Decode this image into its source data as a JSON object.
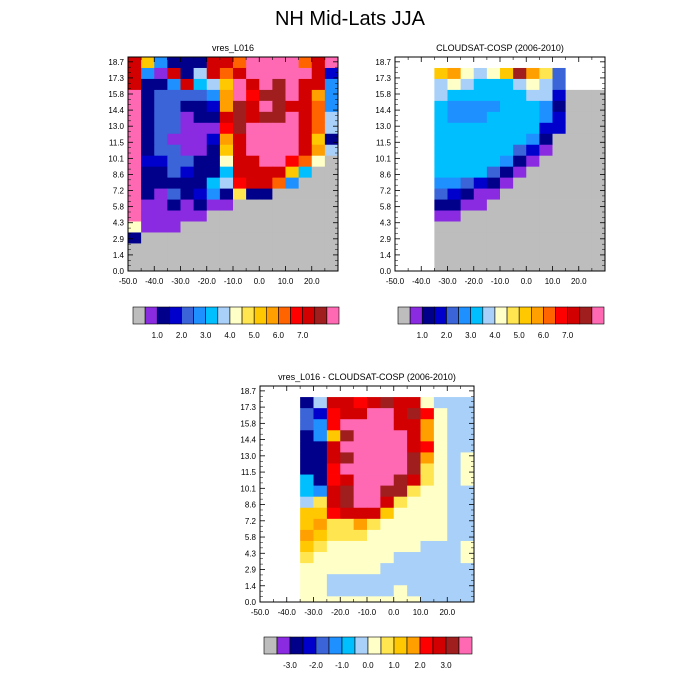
{
  "figure": {
    "title": "NH Mid-Lats JJA"
  },
  "colors": {
    "missing": "#bdbdbd",
    "full_palette": [
      "#bdbdbd",
      "#8a2be2",
      "#00008b",
      "#0000cd",
      "#3a64d8",
      "#1e90ff",
      "#00bfff",
      "#a8d0f8",
      "#ffffc8",
      "#ffe650",
      "#ffc800",
      "#ffa000",
      "#ff6400",
      "#ff0000",
      "#d20000",
      "#a01e1e",
      "#ff69b4"
    ],
    "diff_palette": [
      "#bdbdbd",
      "#8a2be2",
      "#00008b",
      "#0000cd",
      "#3a64d8",
      "#1e90ff",
      "#00bfff",
      "#a8d0f8",
      "#ffffc8",
      "#ffe650",
      "#ffc800",
      "#ffa000",
      "#ff0000",
      "#d20000",
      "#a01e1e",
      "#ff69b4"
    ]
  },
  "chart_data": [
    {
      "type": "heatmap",
      "title": "vres_L016",
      "xlabel": "",
      "ylabel": "",
      "x_ticks": [
        "-50.0",
        "-40.0",
        "-30.0",
        "-20.0",
        "-10.0",
        "0.0",
        "10.0",
        "20.0"
      ],
      "y_ticks": [
        "0.0",
        "1.4",
        "2.9",
        "4.3",
        "5.8",
        "7.2",
        "8.6",
        "10.1",
        "11.5",
        "13.0",
        "14.4",
        "15.8",
        "17.3",
        "18.7"
      ],
      "colorbar_labels": [
        "1.0",
        "2.0",
        "3.0",
        "4.0",
        "5.0",
        "6.0",
        "7.0"
      ],
      "x_start": -50,
      "x_step": 5,
      "row_bottom_height_km": 0.2,
      "missing_value": 0,
      "values": [
        [
          14,
          10,
          5,
          2,
          2,
          2,
          14,
          14,
          12,
          16,
          16,
          16,
          16,
          12,
          14,
          16
        ],
        [
          14,
          5,
          1,
          14,
          2,
          7,
          14,
          12,
          14,
          16,
          16,
          16,
          16,
          16,
          14,
          3
        ],
        [
          14,
          2,
          2,
          5,
          14,
          6,
          7,
          10,
          16,
          14,
          16,
          15,
          16,
          14,
          14,
          5
        ],
        [
          16,
          2,
          4,
          4,
          4,
          4,
          5,
          11,
          16,
          13,
          15,
          15,
          16,
          14,
          11,
          5
        ],
        [
          16,
          2,
          4,
          4,
          2,
          2,
          3,
          11,
          15,
          14,
          16,
          15,
          14,
          14,
          12,
          5
        ],
        [
          16,
          2,
          4,
          4,
          1,
          2,
          2,
          14,
          15,
          14,
          15,
          15,
          16,
          14,
          12,
          7
        ],
        [
          16,
          2,
          4,
          4,
          1,
          1,
          1,
          13,
          15,
          16,
          16,
          16,
          16,
          14,
          12,
          7
        ],
        [
          16,
          2,
          4,
          1,
          1,
          1,
          3,
          11,
          14,
          16,
          16,
          16,
          16,
          14,
          10,
          2
        ],
        [
          16,
          2,
          4,
          4,
          1,
          1,
          2,
          10,
          14,
          16,
          16,
          16,
          16,
          14,
          11,
          7
        ],
        [
          16,
          3,
          3,
          4,
          4,
          2,
          2,
          8,
          14,
          14,
          16,
          16,
          13,
          12,
          8,
          0
        ],
        [
          16,
          2,
          2,
          4,
          3,
          2,
          2,
          6,
          14,
          14,
          14,
          14,
          10,
          6,
          0,
          0
        ],
        [
          16,
          2,
          2,
          2,
          2,
          2,
          6,
          7,
          13,
          14,
          14,
          12,
          5,
          0,
          0,
          0
        ],
        [
          16,
          2,
          1,
          4,
          2,
          3,
          5,
          2,
          9,
          2,
          2,
          0,
          0,
          0,
          0,
          0
        ],
        [
          16,
          1,
          1,
          2,
          1,
          2,
          1,
          1,
          0,
          0,
          0,
          0,
          0,
          0,
          0,
          0
        ],
        [
          16,
          1,
          1,
          1,
          1,
          1,
          0,
          0,
          0,
          0,
          0,
          0,
          0,
          0,
          0,
          0
        ],
        [
          8,
          1,
          1,
          1,
          0,
          0,
          0,
          0,
          0,
          0,
          0,
          0,
          0,
          0,
          0,
          0
        ],
        [
          2,
          0,
          0,
          0,
          0,
          0,
          0,
          0,
          0,
          0,
          0,
          0,
          0,
          0,
          0,
          0
        ],
        [
          0,
          0,
          0,
          0,
          0,
          0,
          0,
          0,
          0,
          0,
          0,
          0,
          0,
          0,
          0,
          0
        ],
        [
          0,
          0,
          0,
          0,
          0,
          0,
          0,
          0,
          0,
          0,
          0,
          0,
          0,
          0,
          0,
          0
        ],
        [
          0,
          0,
          0,
          0,
          0,
          0,
          0,
          0,
          0,
          0,
          0,
          0,
          0,
          0,
          0,
          0
        ]
      ]
    },
    {
      "type": "heatmap",
      "title": "CLOUDSAT-COSP (2006-2010)",
      "xlabel": "",
      "ylabel": "",
      "x_ticks": [
        "-50.0",
        "-40.0",
        "-30.0",
        "-20.0",
        "-10.0",
        "0.0",
        "10.0",
        "20.0"
      ],
      "y_ticks": [
        "0.0",
        "1.4",
        "2.9",
        "4.3",
        "5.8",
        "7.2",
        "8.6",
        "10.1",
        "11.5",
        "13.0",
        "14.4",
        "15.8",
        "17.3",
        "18.7"
      ],
      "colorbar_labels": [
        "1.0",
        "2.0",
        "3.0",
        "4.0",
        "5.0",
        "6.0",
        "7.0"
      ],
      "x_start": -50,
      "x_step": 5,
      "row_bottom_height_km": 0.2,
      "missing_value": 0,
      "blank_value": -1,
      "values": [
        [
          -1,
          -1,
          -1,
          -1,
          -1,
          -1,
          -1,
          -1,
          -1,
          -1,
          -1,
          -1,
          -1,
          -1,
          -1,
          -1
        ],
        [
          -1,
          -1,
          -1,
          10,
          11,
          8,
          7,
          8,
          10,
          15,
          11,
          9,
          4,
          -1,
          -1,
          -1
        ],
        [
          -1,
          -1,
          -1,
          7,
          8,
          7,
          6,
          6,
          6,
          7,
          8,
          7,
          4,
          -1,
          -1,
          -1
        ],
        [
          -1,
          -1,
          -1,
          7,
          6,
          6,
          6,
          6,
          6,
          6,
          7,
          7,
          3,
          0,
          0,
          0
        ],
        [
          -1,
          -1,
          -1,
          6,
          5,
          5,
          5,
          5,
          6,
          6,
          6,
          5,
          2,
          0,
          0,
          0
        ],
        [
          -1,
          -1,
          -1,
          6,
          5,
          5,
          5,
          6,
          6,
          6,
          6,
          5,
          3,
          0,
          0,
          0
        ],
        [
          -1,
          -1,
          -1,
          6,
          6,
          6,
          6,
          6,
          6,
          6,
          6,
          3,
          3,
          0,
          0,
          0
        ],
        [
          -1,
          -1,
          -1,
          6,
          6,
          6,
          6,
          6,
          6,
          6,
          5,
          2,
          0,
          0,
          0,
          0
        ],
        [
          -1,
          -1,
          -1,
          6,
          6,
          6,
          6,
          6,
          6,
          4,
          3,
          1,
          0,
          0,
          0,
          0
        ],
        [
          -1,
          -1,
          -1,
          6,
          6,
          6,
          6,
          6,
          5,
          2,
          1,
          0,
          0,
          0,
          0,
          0
        ],
        [
          -1,
          -1,
          -1,
          6,
          6,
          6,
          6,
          4,
          2,
          1,
          0,
          0,
          0,
          0,
          0,
          0
        ],
        [
          -1,
          -1,
          -1,
          5,
          5,
          4,
          3,
          2,
          1,
          0,
          0,
          0,
          0,
          0,
          0,
          0
        ],
        [
          -1,
          -1,
          -1,
          4,
          3,
          2,
          1,
          1,
          0,
          0,
          0,
          0,
          0,
          0,
          0,
          0
        ],
        [
          -1,
          -1,
          -1,
          2,
          2,
          1,
          1,
          0,
          0,
          0,
          0,
          0,
          0,
          0,
          0,
          0
        ],
        [
          -1,
          -1,
          -1,
          1,
          1,
          0,
          0,
          0,
          0,
          0,
          0,
          0,
          0,
          0,
          0,
          0
        ],
        [
          -1,
          -1,
          -1,
          0,
          0,
          0,
          0,
          0,
          0,
          0,
          0,
          0,
          0,
          0,
          0,
          0
        ],
        [
          -1,
          -1,
          -1,
          0,
          0,
          0,
          0,
          0,
          0,
          0,
          0,
          0,
          0,
          0,
          0,
          0
        ],
        [
          -1,
          -1,
          -1,
          0,
          0,
          0,
          0,
          0,
          0,
          0,
          0,
          0,
          0,
          0,
          0,
          0
        ],
        [
          -1,
          -1,
          -1,
          0,
          0,
          0,
          0,
          0,
          0,
          0,
          0,
          0,
          0,
          0,
          0,
          0
        ],
        [
          -1,
          -1,
          -1,
          0,
          0,
          0,
          0,
          0,
          0,
          0,
          0,
          0,
          0,
          0,
          0,
          0
        ]
      ]
    },
    {
      "type": "heatmap",
      "title": "vres_L016 - CLOUDSAT-COSP (2006-2010)",
      "xlabel": "",
      "ylabel": "",
      "x_ticks": [
        "-50.0",
        "-40.0",
        "-30.0",
        "-20.0",
        "-10.0",
        "0.0",
        "10.0",
        "20.0"
      ],
      "y_ticks": [
        "0.0",
        "1.4",
        "2.9",
        "4.3",
        "5.8",
        "7.2",
        "8.6",
        "10.1",
        "11.5",
        "13.0",
        "14.4",
        "15.8",
        "17.3",
        "18.7"
      ],
      "colorbar_labels": [
        "-3.0",
        "-2.0",
        "-1.0",
        "0.0",
        "1.0",
        "2.0",
        "3.0"
      ],
      "x_start": -50,
      "x_step": 5,
      "row_bottom_height_km": 0.2,
      "missing_value": 0,
      "blank_value": -1,
      "values": [
        [
          -1,
          -1,
          -1,
          -1,
          -1,
          -1,
          -1,
          -1,
          -1,
          -1,
          -1,
          -1,
          -1,
          -1,
          -1,
          -1
        ],
        [
          -1,
          -1,
          -1,
          2,
          7,
          13,
          13,
          12,
          13,
          14,
          13,
          13,
          8,
          7,
          7,
          7
        ],
        [
          -1,
          -1,
          -1,
          4,
          3,
          12,
          13,
          13,
          15,
          15,
          13,
          14,
          12,
          8,
          7,
          7
        ],
        [
          -1,
          -1,
          -1,
          4,
          5,
          12,
          15,
          15,
          15,
          15,
          13,
          13,
          11,
          8,
          7,
          7
        ],
        [
          -1,
          -1,
          -1,
          2,
          5,
          10,
          14,
          15,
          15,
          15,
          15,
          13,
          11,
          8,
          7,
          7
        ],
        [
          -1,
          -1,
          -1,
          2,
          2,
          13,
          15,
          15,
          15,
          15,
          15,
          13,
          12,
          8,
          7,
          7
        ],
        [
          -1,
          -1,
          -1,
          2,
          2,
          13,
          14,
          15,
          15,
          15,
          15,
          14,
          11,
          8,
          7,
          8
        ],
        [
          -1,
          -1,
          -1,
          2,
          2,
          12,
          15,
          15,
          15,
          15,
          15,
          14,
          9,
          8,
          7,
          8
        ],
        [
          -1,
          -1,
          -1,
          6,
          2,
          12,
          13,
          15,
          15,
          15,
          14,
          13,
          9,
          8,
          7,
          8
        ],
        [
          -1,
          -1,
          -1,
          6,
          5,
          13,
          14,
          15,
          15,
          14,
          14,
          9,
          8,
          8,
          7,
          7
        ],
        [
          -1,
          -1,
          -1,
          7,
          9,
          13,
          14,
          15,
          15,
          13,
          9,
          8,
          8,
          8,
          7,
          7
        ],
        [
          -1,
          -1,
          -1,
          10,
          10,
          12,
          13,
          13,
          13,
          10,
          8,
          8,
          8,
          8,
          7,
          7
        ],
        [
          -1,
          -1,
          -1,
          10,
          11,
          9,
          9,
          11,
          9,
          8,
          8,
          8,
          8,
          8,
          7,
          7
        ],
        [
          -1,
          -1,
          -1,
          11,
          10,
          9,
          9,
          9,
          8,
          8,
          8,
          8,
          8,
          8,
          7,
          7
        ],
        [
          -1,
          -1,
          -1,
          10,
          9,
          8,
          8,
          8,
          8,
          8,
          8,
          8,
          7,
          7,
          7,
          8
        ],
        [
          -1,
          -1,
          -1,
          9,
          8,
          8,
          8,
          8,
          8,
          8,
          7,
          7,
          7,
          7,
          7,
          8
        ],
        [
          -1,
          -1,
          -1,
          8,
          8,
          8,
          8,
          8,
          8,
          7,
          7,
          7,
          7,
          7,
          7,
          7
        ],
        [
          -1,
          -1,
          -1,
          8,
          8,
          7,
          7,
          7,
          7,
          7,
          7,
          7,
          7,
          7,
          7,
          7
        ],
        [
          -1,
          -1,
          -1,
          8,
          8,
          7,
          7,
          7,
          7,
          7,
          8,
          7,
          7,
          7,
          7,
          7
        ],
        [
          -1,
          -1,
          -1,
          8,
          8,
          8,
          8,
          8,
          8,
          8,
          8,
          8,
          7,
          7,
          7,
          7
        ]
      ]
    }
  ]
}
